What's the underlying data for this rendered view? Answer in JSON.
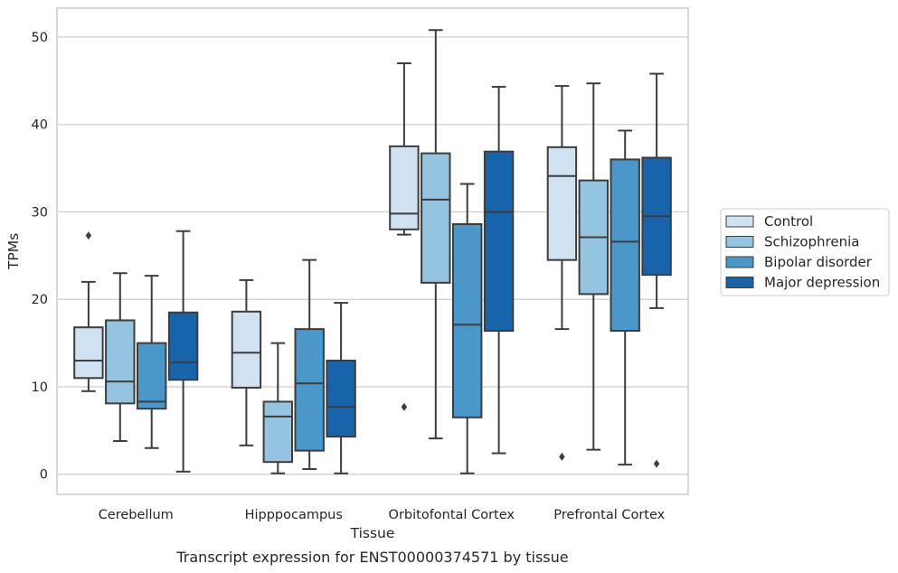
{
  "chart_data": {
    "type": "boxplot",
    "xlabel": "Tissue",
    "ylabel": "TPMs",
    "caption": "Transcript expression for ENST00000374571 by tissue",
    "ylim": [
      -2.3,
      53.3
    ],
    "yticks": [
      0,
      10,
      20,
      30,
      40,
      50
    ],
    "grid": "horizontal",
    "legend_position": "right",
    "categories": [
      "Cerebellum",
      "Hipppocampus",
      "Orbitofontal Cortex",
      "Prefrontal Cortex"
    ],
    "series": [
      {
        "name": "Control",
        "color": "#d0e1f2",
        "boxes": [
          {
            "whisker_low": 9.5,
            "q1": 11.0,
            "median": 13.0,
            "q3": 16.8,
            "whisker_high": 22.0,
            "outliers": [
              27.3
            ]
          },
          {
            "whisker_low": 3.3,
            "q1": 9.9,
            "median": 13.9,
            "q3": 18.6,
            "whisker_high": 22.2,
            "outliers": []
          },
          {
            "whisker_low": 27.4,
            "q1": 28.0,
            "median": 29.8,
            "q3": 37.5,
            "whisker_high": 47.0,
            "outliers": [
              7.7
            ]
          },
          {
            "whisker_low": 16.6,
            "q1": 24.5,
            "median": 34.1,
            "q3": 37.4,
            "whisker_high": 44.4,
            "outliers": [
              2.0
            ]
          }
        ]
      },
      {
        "name": "Schizophrenia",
        "color": "#94c4df",
        "boxes": [
          {
            "whisker_low": 3.8,
            "q1": 8.1,
            "median": 10.6,
            "q3": 17.6,
            "whisker_high": 23.0,
            "outliers": []
          },
          {
            "whisker_low": 0.1,
            "q1": 1.4,
            "median": 6.6,
            "q3": 8.3,
            "whisker_high": 15.0,
            "outliers": []
          },
          {
            "whisker_low": 4.1,
            "q1": 21.9,
            "median": 31.4,
            "q3": 36.7,
            "whisker_high": 50.8,
            "outliers": []
          },
          {
            "whisker_low": 2.8,
            "q1": 20.6,
            "median": 27.1,
            "q3": 33.6,
            "whisker_high": 44.7,
            "outliers": []
          }
        ]
      },
      {
        "name": "Bipolar disorder",
        "color": "#4a98c9",
        "boxes": [
          {
            "whisker_low": 3.0,
            "q1": 7.5,
            "median": 8.3,
            "q3": 15.0,
            "whisker_high": 22.7,
            "outliers": []
          },
          {
            "whisker_low": 0.6,
            "q1": 2.7,
            "median": 10.4,
            "q3": 16.6,
            "whisker_high": 24.5,
            "outliers": []
          },
          {
            "whisker_low": 0.1,
            "q1": 6.5,
            "median": 17.1,
            "q3": 28.6,
            "whisker_high": 33.2,
            "outliers": []
          },
          {
            "whisker_low": 1.1,
            "q1": 16.4,
            "median": 26.6,
            "q3": 36.0,
            "whisker_high": 39.3,
            "outliers": []
          }
        ]
      },
      {
        "name": "Major depression",
        "color": "#1764ab",
        "boxes": [
          {
            "whisker_low": 0.3,
            "q1": 10.8,
            "median": 12.8,
            "q3": 18.5,
            "whisker_high": 27.8,
            "outliers": []
          },
          {
            "whisker_low": 0.1,
            "q1": 4.3,
            "median": 7.7,
            "q3": 13.0,
            "whisker_high": 19.6,
            "outliers": []
          },
          {
            "whisker_low": 2.4,
            "q1": 16.4,
            "median": 30.0,
            "q3": 36.9,
            "whisker_high": 44.3,
            "outliers": []
          },
          {
            "whisker_low": 19.0,
            "q1": 22.8,
            "median": 29.5,
            "q3": 36.2,
            "whisker_high": 45.8,
            "outliers": [
              1.2
            ]
          }
        ]
      }
    ]
  }
}
